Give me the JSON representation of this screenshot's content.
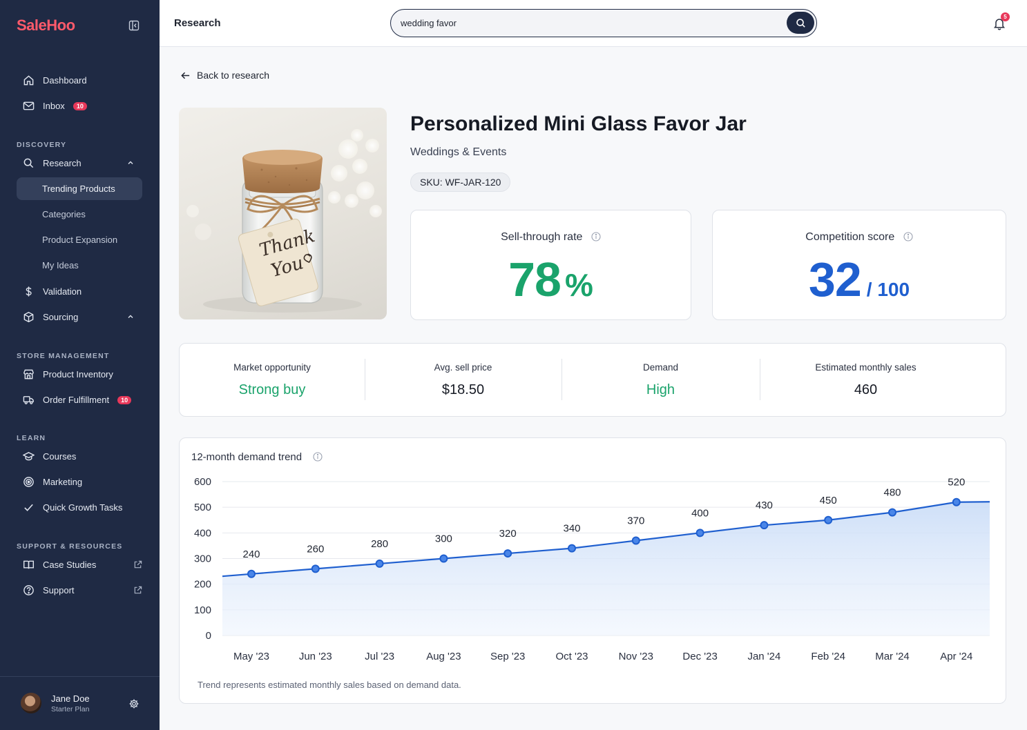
{
  "sidebar": {
    "brand": "SaleHoo",
    "nav": {
      "dashboard": "Dashboard",
      "inbox": "Inbox",
      "inbox_badge": "10",
      "discovery_label": "DISCOVERY",
      "research": "Research",
      "trending": "Trending Products",
      "categories": "Categories",
      "expansion": "Product Expansion",
      "ideas": "My Ideas",
      "validation": "Validation",
      "sourcing": "Sourcing",
      "store_label": "STORE MANAGEMENT",
      "inventory": "Product Inventory",
      "fulfillment": "Order Fulfillment",
      "fulfillment_badge": "10",
      "learn_label": "LEARN",
      "courses": "Courses",
      "marketing": "Marketing",
      "growth": "Quick Growth Tasks",
      "support_label": "SUPPORT & RESOURCES",
      "case_studies": "Case Studies",
      "support": "Support"
    },
    "user": {
      "name": "Jane Doe",
      "plan": "Starter Plan"
    }
  },
  "topbar": {
    "title": "Research",
    "search_value": "wedding favor",
    "notification_count": "5"
  },
  "main": {
    "back_label": "Back to research",
    "product": {
      "title": "Personalized Mini Glass Favor Jar",
      "category": "Weddings & Events",
      "sku": "SKU: WF-JAR-120",
      "tag_line1": "Thank",
      "tag_line2": "You"
    },
    "sell_through": {
      "label": "Sell-through rate",
      "value": "78",
      "unit": "%"
    },
    "competition": {
      "label": "Competition score",
      "value": "32",
      "unit": "/ 100"
    },
    "stats": [
      {
        "label": "Market opportunity",
        "value": "Strong buy",
        "color": "#1aa36b"
      },
      {
        "label": "Avg. sell price",
        "value": "$18.50",
        "color": "#161a24"
      },
      {
        "label": "Demand",
        "value": "High",
        "color": "#1aa36b"
      },
      {
        "label": "Estimated monthly sales",
        "value": "460",
        "color": "#161a24"
      }
    ],
    "chart": {
      "title": "12-month demand trend",
      "note": "Trend represents estimated monthly sales based on demand data."
    }
  },
  "colors": {
    "accent": "#1f5fcf",
    "positive": "#1aa36b",
    "sidebar": "#1f2a44",
    "brand": "#ff5a6b"
  },
  "chart_data": {
    "type": "area",
    "title": "12-month demand trend",
    "categories": [
      "May '23",
      "Jun '23",
      "Jul '23",
      "Aug '23",
      "Sep '23",
      "Oct '23",
      "Nov '23",
      "Dec '23",
      "Jan '24",
      "Feb '24",
      "Mar '24",
      "Apr '24"
    ],
    "values": [
      240,
      260,
      280,
      300,
      320,
      340,
      370,
      400,
      430,
      450,
      480,
      520
    ],
    "ylim": [
      0,
      600
    ],
    "yticks": [
      0,
      100,
      200,
      300,
      400,
      500,
      600
    ],
    "xlabel": "",
    "ylabel": "",
    "grid": true,
    "data_labels": true,
    "line_color": "#1f5fcf"
  }
}
